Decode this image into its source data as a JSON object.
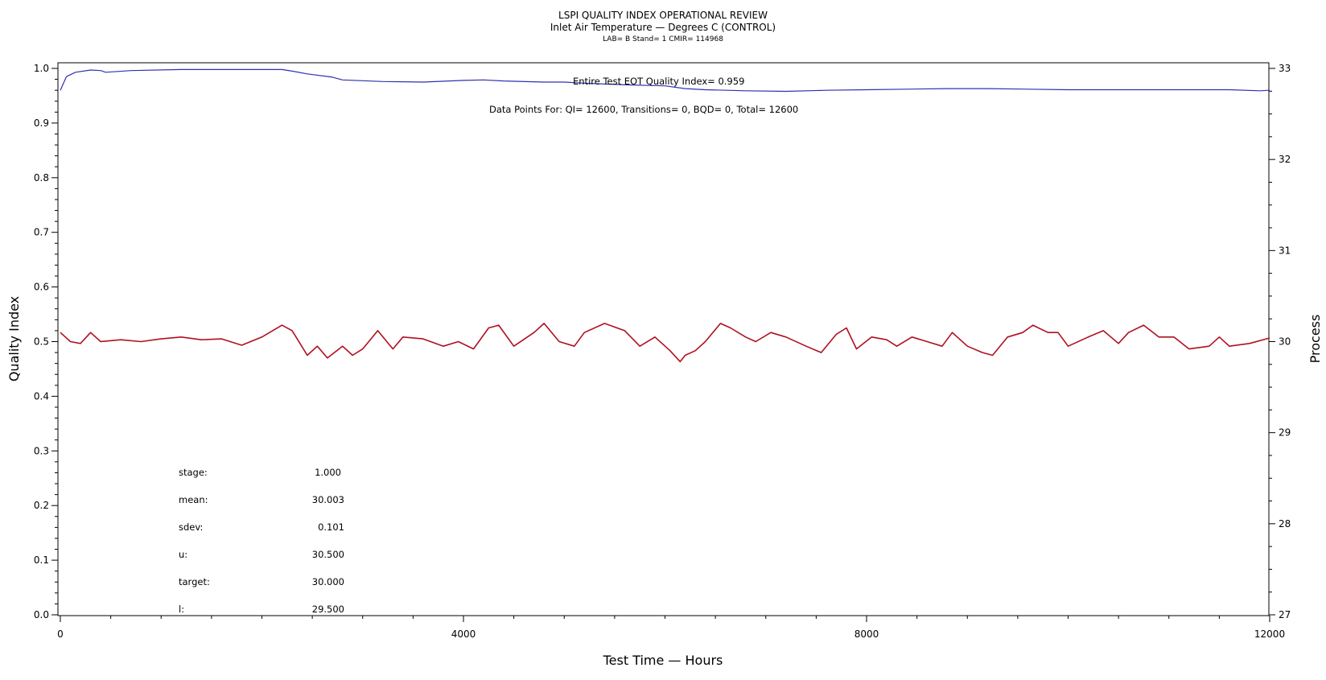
{
  "header": {
    "title": "LSPI QUALITY INDEX OPERATIONAL REVIEW",
    "subtitle": "Inlet Air Temperature — Degrees C (CONTROL)",
    "meta": "LAB= B Stand= 1 CMIR= 114968"
  },
  "annotations": {
    "eot": "Entire Test EOT Quality Index=   0.959",
    "datapoints": "Data Points For: QI= 12600, Transitions=     0, BQD=     0, Total= 12600"
  },
  "stats": [
    {
      "label": "stage:",
      "value": "1.000"
    },
    {
      "label": "mean:",
      "value": "30.003"
    },
    {
      "label": "sdev:",
      "value": "0.101"
    },
    {
      "label": "u:",
      "value": "30.500"
    },
    {
      "label": "target:",
      "value": "30.000"
    },
    {
      "label": "l:",
      "value": "29.500"
    }
  ],
  "colors": {
    "quality_series": "#3030b0",
    "process_series": "#b01020",
    "axis": "#000000"
  },
  "chart_data": {
    "type": "line",
    "xlabel": "Test Time — Hours",
    "ylabel_left": "Quality Index",
    "ylabel_right": "Process",
    "xlim": [
      0,
      12000
    ],
    "ylim_left": [
      0.0,
      1.0
    ],
    "ylim_right": [
      27,
      33
    ],
    "x_ticks": [
      0,
      4000,
      8000,
      12000
    ],
    "y_left_ticks": [
      "0.0",
      "0.1",
      "0.2",
      "0.3",
      "0.4",
      "0.5",
      "0.6",
      "0.7",
      "0.8",
      "0.9",
      "1.0"
    ],
    "y_right_ticks": [
      "27",
      "28",
      "29",
      "30",
      "31",
      "32",
      "33"
    ],
    "grid": false,
    "series": [
      {
        "axis": "left",
        "x": [
          0,
          60,
          150,
          300,
          400,
          450,
          700,
          1200,
          2200,
          2300,
          2450,
          2700,
          2800,
          3200,
          3600,
          4000,
          4200,
          4400,
          4800,
          5000,
          5200,
          5600,
          6000,
          6200,
          6400,
          6800,
          7200,
          7600,
          8000,
          8400,
          8800,
          9200,
          9600,
          10000,
          10400,
          10800,
          11200,
          11600,
          11900,
          12000
        ],
        "values": [
          0.96,
          0.985,
          0.993,
          0.997,
          0.996,
          0.993,
          0.996,
          0.998,
          0.998,
          0.995,
          0.99,
          0.984,
          0.979,
          0.976,
          0.975,
          0.978,
          0.979,
          0.977,
          0.975,
          0.975,
          0.973,
          0.97,
          0.968,
          0.963,
          0.961,
          0.959,
          0.958,
          0.96,
          0.961,
          0.962,
          0.963,
          0.963,
          0.962,
          0.961,
          0.961,
          0.961,
          0.961,
          0.961,
          0.959,
          0.96
        ]
      },
      {
        "axis": "right",
        "x": [
          0,
          100,
          200,
          300,
          400,
          600,
          800,
          1000,
          1200,
          1400,
          1600,
          1800,
          2000,
          2200,
          2300,
          2450,
          2550,
          2650,
          2800,
          2900,
          3000,
          3150,
          3300,
          3400,
          3600,
          3800,
          3950,
          4100,
          4250,
          4350,
          4500,
          4700,
          4800,
          4950,
          5100,
          5200,
          5400,
          5600,
          5750,
          5900,
          6050,
          6150,
          6200,
          6300,
          6400,
          6550,
          6650,
          6800,
          6900,
          7050,
          7200,
          7400,
          7550,
          7700,
          7800,
          7900,
          8050,
          8200,
          8300,
          8450,
          8600,
          8750,
          8850,
          9000,
          9150,
          9250,
          9400,
          9550,
          9650,
          9800,
          9900,
          10000,
          10200,
          10350,
          10500,
          10600,
          10750,
          10900,
          11050,
          11200,
          11400,
          11500,
          11600,
          11800,
          12000
        ],
        "values": [
          30.1,
          30.0,
          29.98,
          30.1,
          30.0,
          30.02,
          30.0,
          30.03,
          30.05,
          30.02,
          30.03,
          29.96,
          30.05,
          30.18,
          30.12,
          29.85,
          29.95,
          29.82,
          29.95,
          29.85,
          29.92,
          30.12,
          29.92,
          30.05,
          30.03,
          29.95,
          30.0,
          29.92,
          30.15,
          30.18,
          29.95,
          30.1,
          30.2,
          30.0,
          29.95,
          30.1,
          30.2,
          30.12,
          29.95,
          30.05,
          29.9,
          29.78,
          29.85,
          29.9,
          30.0,
          30.2,
          30.15,
          30.05,
          30.0,
          30.1,
          30.05,
          29.95,
          29.88,
          30.08,
          30.15,
          29.92,
          30.05,
          30.02,
          29.95,
          30.05,
          30.0,
          29.95,
          30.1,
          29.95,
          29.88,
          29.85,
          30.05,
          30.1,
          30.18,
          30.1,
          30.1,
          29.95,
          30.05,
          30.12,
          29.98,
          30.1,
          30.18,
          30.05,
          30.05,
          29.92,
          29.95,
          30.05,
          29.95,
          29.98,
          30.04
        ]
      }
    ]
  }
}
